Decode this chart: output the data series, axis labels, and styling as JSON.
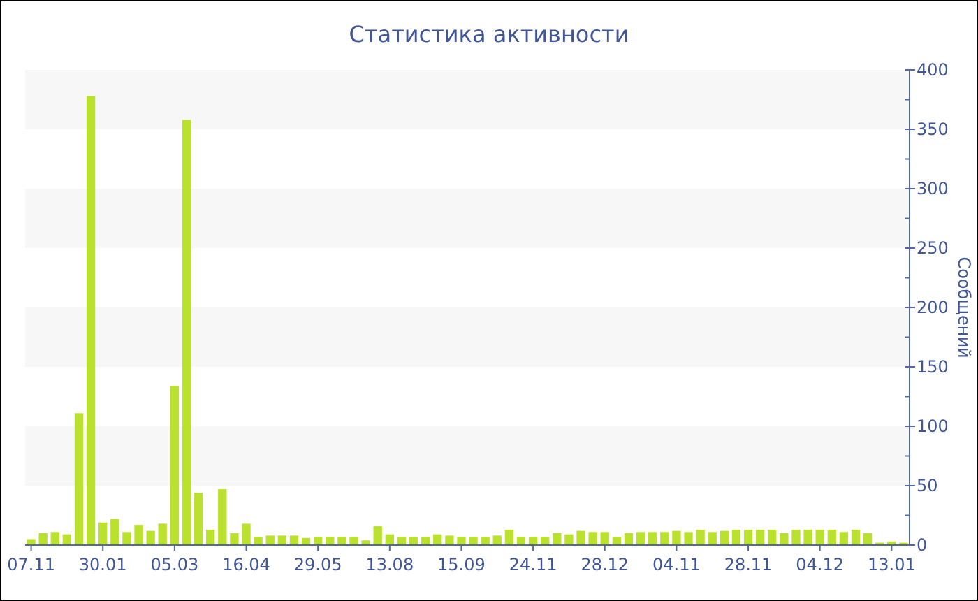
{
  "chart_data": {
    "type": "bar",
    "title": "Статистика активности",
    "ylabel": "Сообщений",
    "categories": [
      "07.11",
      null,
      null,
      null,
      null,
      null,
      "30.01",
      null,
      null,
      null,
      null,
      null,
      "05.03",
      null,
      null,
      null,
      null,
      null,
      "16.04",
      null,
      null,
      null,
      null,
      null,
      "29.05",
      null,
      null,
      null,
      null,
      null,
      "13.08",
      null,
      null,
      null,
      null,
      null,
      "15.09",
      null,
      null,
      null,
      null,
      null,
      "24.11",
      null,
      null,
      null,
      null,
      null,
      "28.12",
      null,
      null,
      null,
      null,
      null,
      "04.11",
      null,
      null,
      null,
      null,
      null,
      "28.11",
      null,
      null,
      null,
      null,
      null,
      "04.12",
      null,
      null,
      null,
      null,
      null,
      "13.01",
      null
    ],
    "values": [
      5,
      10,
      11,
      9,
      111,
      378,
      19,
      22,
      11,
      17,
      12,
      18,
      134,
      358,
      44,
      13,
      47,
      10,
      18,
      7,
      8,
      8,
      8,
      6,
      7,
      7,
      7,
      7,
      4,
      16,
      9,
      7,
      7,
      7,
      9,
      8,
      7,
      7,
      7,
      8,
      13,
      7,
      7,
      7,
      10,
      9,
      12,
      11,
      11,
      7,
      10,
      11,
      11,
      11,
      12,
      11,
      13,
      11,
      12,
      13,
      13,
      13,
      13,
      10,
      13,
      13,
      13,
      13,
      11,
      13,
      10,
      2,
      3,
      2
    ],
    "color": "#bae12e",
    "ylim": [
      0,
      400
    ],
    "yticks": [
      0,
      {
        "value": 25,
        "label": null
      },
      50,
      {
        "value": 75,
        "label": null
      },
      100,
      {
        "value": 125,
        "label": null
      },
      150,
      {
        "value": 175,
        "label": null
      },
      200,
      {
        "value": 225,
        "label": null
      },
      250,
      {
        "value": 275,
        "label": null
      },
      300,
      {
        "value": 325,
        "label": null
      },
      350,
      {
        "value": 375,
        "label": null
      },
      400
    ],
    "bands": [
      {
        "axis": "y",
        "from": 50,
        "to": 100,
        "color": "#f7f7f7"
      },
      {
        "axis": "y",
        "from": 150,
        "to": 200,
        "color": "#f7f7f7"
      },
      {
        "axis": "y",
        "from": 250,
        "to": 300,
        "color": "#f7f7f7"
      },
      {
        "axis": "y",
        "from": 350,
        "to": 400,
        "color": "#f7f7f7"
      }
    ]
  }
}
